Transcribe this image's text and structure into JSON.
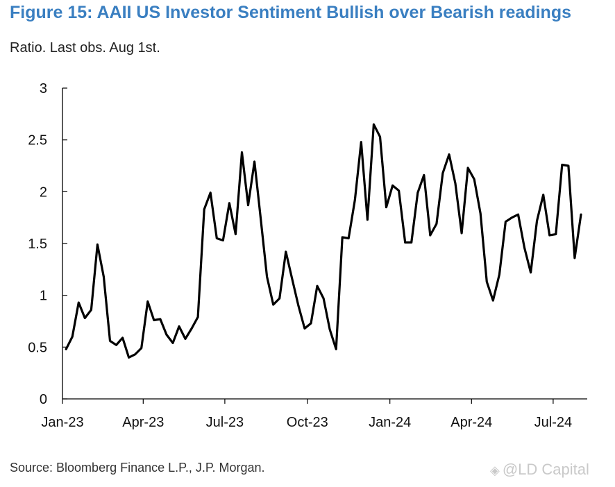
{
  "title": "Figure 15: AAII US Investor Sentiment Bullish over Bearish readings",
  "subtitle": "Ratio. Last obs. Aug 1st.",
  "source": "Source: Bloomberg Finance L.P., J.P. Morgan.",
  "watermark": "@LD Capital",
  "chart_data": {
    "type": "line",
    "title": "Figure 15: AAII US Investor Sentiment Bullish over Bearish readings",
    "subtitle": "Ratio. Last obs. Aug 1st.",
    "xlabel": "",
    "ylabel": "",
    "ylim": [
      0,
      3
    ],
    "yticks": [
      0,
      0.5,
      1,
      1.5,
      2,
      2.5,
      3
    ],
    "ytick_labels": [
      "0",
      "0.5",
      "1",
      "1.5",
      "2",
      "2.5",
      "3"
    ],
    "xlim": [
      "2023-01-01",
      "2024-08-08"
    ],
    "xticks": [
      "2023-01-01",
      "2023-04-01",
      "2023-07-01",
      "2023-10-01",
      "2024-01-01",
      "2024-04-01",
      "2024-07-01"
    ],
    "xtick_labels": [
      "Jan-23",
      "Apr-23",
      "Jul-23",
      "Oct-23",
      "Jan-24",
      "Apr-24",
      "Jul-24"
    ],
    "grid": false,
    "line_color": "#000000",
    "series": [
      {
        "x": [
          "2023-01-05",
          "2023-01-12",
          "2023-01-19",
          "2023-01-26",
          "2023-02-02",
          "2023-02-09",
          "2023-02-16",
          "2023-02-23",
          "2023-03-02",
          "2023-03-09",
          "2023-03-16",
          "2023-03-23",
          "2023-03-30",
          "2023-04-06",
          "2023-04-13",
          "2023-04-20",
          "2023-04-27",
          "2023-05-04",
          "2023-05-11",
          "2023-05-18",
          "2023-05-25",
          "2023-06-01",
          "2023-06-08",
          "2023-06-15",
          "2023-06-22",
          "2023-06-29",
          "2023-07-06",
          "2023-07-13",
          "2023-07-20",
          "2023-07-27",
          "2023-08-03",
          "2023-08-10",
          "2023-08-17",
          "2023-08-24",
          "2023-08-31",
          "2023-09-07",
          "2023-09-14",
          "2023-09-21",
          "2023-09-28",
          "2023-10-05",
          "2023-10-12",
          "2023-10-19",
          "2023-10-26",
          "2023-11-02",
          "2023-11-09",
          "2023-11-16",
          "2023-11-23",
          "2023-11-30",
          "2023-12-07",
          "2023-12-14",
          "2023-12-21",
          "2023-12-28",
          "2024-01-04",
          "2024-01-11",
          "2024-01-18",
          "2024-01-25",
          "2024-02-01",
          "2024-02-08",
          "2024-02-15",
          "2024-02-22",
          "2024-02-29",
          "2024-03-07",
          "2024-03-14",
          "2024-03-21",
          "2024-03-28",
          "2024-04-04",
          "2024-04-11",
          "2024-04-18",
          "2024-04-25",
          "2024-05-02",
          "2024-05-09",
          "2024-05-16",
          "2024-05-23",
          "2024-05-30",
          "2024-06-06",
          "2024-06-13",
          "2024-06-20",
          "2024-06-27",
          "2024-07-04",
          "2024-07-11",
          "2024-07-18",
          "2024-07-25",
          "2024-08-01"
        ],
        "values": [
          0.48,
          0.6,
          0.93,
          0.78,
          0.86,
          1.49,
          1.18,
          0.56,
          0.52,
          0.59,
          0.4,
          0.43,
          0.49,
          0.94,
          0.76,
          0.77,
          0.62,
          0.54,
          0.7,
          0.58,
          0.68,
          0.79,
          1.83,
          1.99,
          1.55,
          1.53,
          1.89,
          1.59,
          2.38,
          1.87,
          2.29,
          1.74,
          1.18,
          0.91,
          0.97,
          1.42,
          1.16,
          0.9,
          0.68,
          0.73,
          1.09,
          0.97,
          0.67,
          0.48,
          1.56,
          1.55,
          1.92,
          2.48,
          1.73,
          2.65,
          2.53,
          1.85,
          2.06,
          2.01,
          1.51,
          1.51,
          1.99,
          2.16,
          1.58,
          1.69,
          2.18,
          2.36,
          2.08,
          1.6,
          2.23,
          2.12,
          1.79,
          1.13,
          0.95,
          1.2,
          1.71,
          1.75,
          1.78,
          1.46,
          1.22,
          1.72,
          1.97,
          1.58,
          1.59,
          2.26,
          2.25,
          1.36,
          1.78
        ]
      }
    ]
  }
}
